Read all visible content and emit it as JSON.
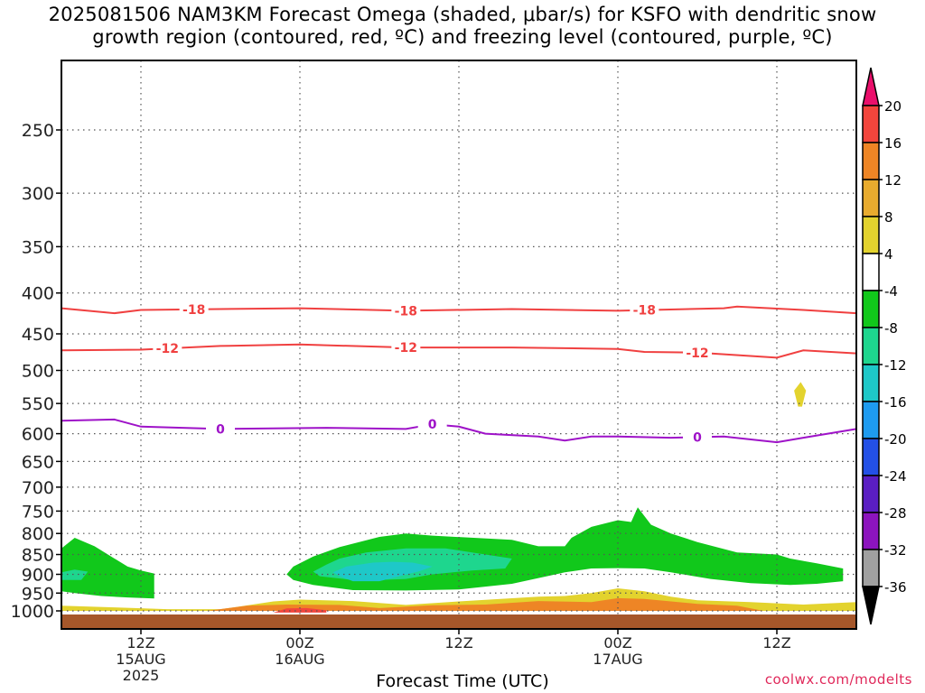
{
  "title_line1": "2025081506 NAM3KM Forecast Omega (shaded, μbar/s) for KSFO with dendritic snow",
  "title_line2": "growth region (contoured, red, ºC) and freezing level (contoured, purple, ºC)",
  "credit": "coolwx.com/modelts",
  "chart_data": {
    "type": "time-height cross section",
    "xlabel": "Forecast Time (UTC)",
    "x_range_hours": [
      0,
      60
    ],
    "x_ticks": [
      {
        "hour": 6,
        "lines": [
          "12Z",
          "15AUG",
          "2025"
        ]
      },
      {
        "hour": 18,
        "lines": [
          "00Z",
          "16AUG"
        ]
      },
      {
        "hour": 30,
        "lines": [
          "12Z"
        ]
      },
      {
        "hour": 42,
        "lines": [
          "00Z",
          "17AUG"
        ]
      },
      {
        "hour": 54,
        "lines": [
          "12Z"
        ]
      }
    ],
    "y_axis": {
      "type": "log-pressure",
      "unit": "hPa",
      "range": [
        1025,
        200
      ],
      "ticks": [
        1000,
        950,
        900,
        850,
        800,
        750,
        700,
        650,
        600,
        550,
        500,
        450,
        400,
        350,
        300,
        250
      ]
    },
    "grid": true,
    "colorbar": {
      "unit": "μbar/s",
      "labels": [
        "20",
        "16",
        "12",
        "8",
        "4",
        "-4",
        "-8",
        "-12",
        "-16",
        "-20",
        "-24",
        "-28",
        "-32",
        "-36"
      ],
      "colors": [
        "#ea0f6b",
        "#f3453c",
        "#ee8525",
        "#e8ab2e",
        "#e3d32e",
        "#ffffff",
        "#11c81b",
        "#1ed68e",
        "#1ec8c8",
        "#1e9bf0",
        "#2350e6",
        "#5a1ec3",
        "#8c14be",
        "#a0a0a0",
        "#000000"
      ],
      "extends_both": true
    },
    "ground_color": "#a6572a",
    "contours": [
      {
        "name": "-18",
        "color": "#f04040",
        "label": "-18",
        "points": [
          [
            0,
            418
          ],
          [
            4,
            424
          ],
          [
            6,
            420
          ],
          [
            12,
            419
          ],
          [
            18,
            418
          ],
          [
            26,
            421
          ],
          [
            34,
            419
          ],
          [
            42,
            421
          ],
          [
            50,
            418
          ],
          [
            51,
            416
          ],
          [
            56,
            420
          ],
          [
            60,
            424
          ]
        ],
        "label_hours": [
          10,
          26,
          44
        ]
      },
      {
        "name": "-12",
        "color": "#f04040",
        "label": "-12",
        "points": [
          [
            0,
            472
          ],
          [
            6,
            471
          ],
          [
            12,
            466
          ],
          [
            18,
            464
          ],
          [
            26,
            468
          ],
          [
            34,
            468
          ],
          [
            42,
            470
          ],
          [
            44,
            474
          ],
          [
            48,
            475
          ],
          [
            54,
            482
          ],
          [
            56,
            472
          ],
          [
            60,
            476
          ]
        ],
        "label_hours": [
          8,
          26,
          48
        ]
      },
      {
        "name": "0",
        "color": "#9e12c8",
        "label": "0",
        "points": [
          [
            0,
            578
          ],
          [
            4,
            576
          ],
          [
            6,
            588
          ],
          [
            12,
            592
          ],
          [
            20,
            590
          ],
          [
            26,
            592
          ],
          [
            28,
            584
          ],
          [
            30,
            588
          ],
          [
            32,
            600
          ],
          [
            36,
            605
          ],
          [
            38,
            612
          ],
          [
            40,
            605
          ],
          [
            42,
            605
          ],
          [
            46,
            607
          ],
          [
            50,
            605
          ],
          [
            54,
            615
          ],
          [
            56,
            607
          ],
          [
            60,
            592
          ]
        ],
        "label_hours": [
          12,
          28,
          48
        ]
      }
    ],
    "shaded_regions": [
      {
        "name": "yellow-blob",
        "color": "#e3d32e",
        "poly": [
          [
            55.6,
            555
          ],
          [
            55.3,
            530
          ],
          [
            55.8,
            517
          ],
          [
            56.2,
            530
          ],
          [
            55.9,
            555
          ]
        ]
      },
      {
        "name": "green-left",
        "color": "#11c81b",
        "poly": [
          [
            0,
            925
          ],
          [
            0,
            835
          ],
          [
            1,
            810
          ],
          [
            2.5,
            830
          ],
          [
            4,
            860
          ],
          [
            5,
            880
          ],
          [
            6,
            890
          ],
          [
            7,
            898
          ],
          [
            7,
            965
          ],
          [
            5,
            962
          ],
          [
            3,
            958
          ],
          [
            1,
            950
          ],
          [
            0,
            945
          ]
        ]
      },
      {
        "name": "teal-left",
        "color": "#1ed68e",
        "poly": [
          [
            0,
            895
          ],
          [
            1,
            888
          ],
          [
            2,
            893
          ],
          [
            1.5,
            915
          ],
          [
            0,
            915
          ]
        ]
      },
      {
        "name": "green-main",
        "color": "#11c81b",
        "poly": [
          [
            17,
            900
          ],
          [
            17.5,
            880
          ],
          [
            19,
            855
          ],
          [
            21,
            832
          ],
          [
            24,
            808
          ],
          [
            26,
            800
          ],
          [
            28,
            805
          ],
          [
            34,
            815
          ],
          [
            36,
            830
          ],
          [
            38,
            830
          ],
          [
            38.5,
            810
          ],
          [
            40,
            785
          ],
          [
            42,
            770
          ],
          [
            43,
            774
          ],
          [
            43.5,
            742
          ],
          [
            44.5,
            780
          ],
          [
            46,
            800
          ],
          [
            48,
            820
          ],
          [
            51,
            845
          ],
          [
            54,
            850
          ],
          [
            55,
            860
          ],
          [
            57,
            872
          ],
          [
            59,
            885
          ],
          [
            59,
            918
          ],
          [
            57,
            925
          ],
          [
            55,
            928
          ],
          [
            52,
            923
          ],
          [
            49,
            912
          ],
          [
            46,
            895
          ],
          [
            44,
            885
          ],
          [
            42,
            884
          ],
          [
            40,
            885
          ],
          [
            38,
            895
          ],
          [
            34,
            925
          ],
          [
            30,
            940
          ],
          [
            26,
            943
          ],
          [
            22,
            942
          ],
          [
            19,
            928
          ],
          [
            17.5,
            915
          ]
        ]
      },
      {
        "name": "teal-main",
        "color": "#1ed68e",
        "poly": [
          [
            19,
            893
          ],
          [
            20,
            875
          ],
          [
            21,
            860
          ],
          [
            23,
            845
          ],
          [
            26,
            835
          ],
          [
            29,
            835
          ],
          [
            32,
            850
          ],
          [
            34,
            860
          ],
          [
            33.5,
            885
          ],
          [
            31,
            890
          ],
          [
            28,
            900
          ],
          [
            26,
            912
          ],
          [
            24,
            915
          ],
          [
            22,
            915
          ],
          [
            19.5,
            905
          ]
        ]
      },
      {
        "name": "cyan-main",
        "color": "#1ec8c8",
        "poly": [
          [
            20.5,
            895
          ],
          [
            21.5,
            880
          ],
          [
            23.5,
            870
          ],
          [
            25,
            868
          ],
          [
            26.5,
            870
          ],
          [
            28,
            880
          ],
          [
            27,
            892
          ],
          [
            25.5,
            905
          ],
          [
            24,
            918
          ],
          [
            22,
            918
          ],
          [
            21,
            905
          ]
        ]
      },
      {
        "name": "yellow-low",
        "color": "#e3d32e",
        "poly": [
          [
            0,
            1000
          ],
          [
            0,
            985
          ],
          [
            4,
            990
          ],
          [
            8,
            995
          ],
          [
            12,
            995
          ],
          [
            13,
            990
          ],
          [
            16,
            973
          ],
          [
            18,
            968
          ],
          [
            22,
            972
          ],
          [
            26,
            983
          ],
          [
            30,
            973
          ],
          [
            36,
            960
          ],
          [
            38,
            958
          ],
          [
            40,
            950
          ],
          [
            42,
            937
          ],
          [
            44,
            945
          ],
          [
            46,
            960
          ],
          [
            48,
            970
          ],
          [
            52,
            975
          ],
          [
            56,
            982
          ],
          [
            60,
            975
          ],
          [
            60,
            1000
          ]
        ]
      },
      {
        "name": "orange-low",
        "color": "#ee8525",
        "poly": [
          [
            11,
            1000
          ],
          [
            14,
            985
          ],
          [
            17,
            982
          ],
          [
            21,
            983
          ],
          [
            24,
            992
          ],
          [
            28,
            984
          ],
          [
            32,
            982
          ],
          [
            36,
            972
          ],
          [
            40,
            975
          ],
          [
            42,
            964
          ],
          [
            44,
            966
          ],
          [
            48,
            980
          ],
          [
            51,
            985
          ],
          [
            53,
            1000
          ]
        ]
      },
      {
        "name": "red-low",
        "color": "#f3453c",
        "poly": [
          [
            16,
            1005
          ],
          [
            17,
            993
          ],
          [
            18.5,
            992
          ],
          [
            20,
            998
          ],
          [
            20,
            1005
          ]
        ]
      }
    ]
  }
}
